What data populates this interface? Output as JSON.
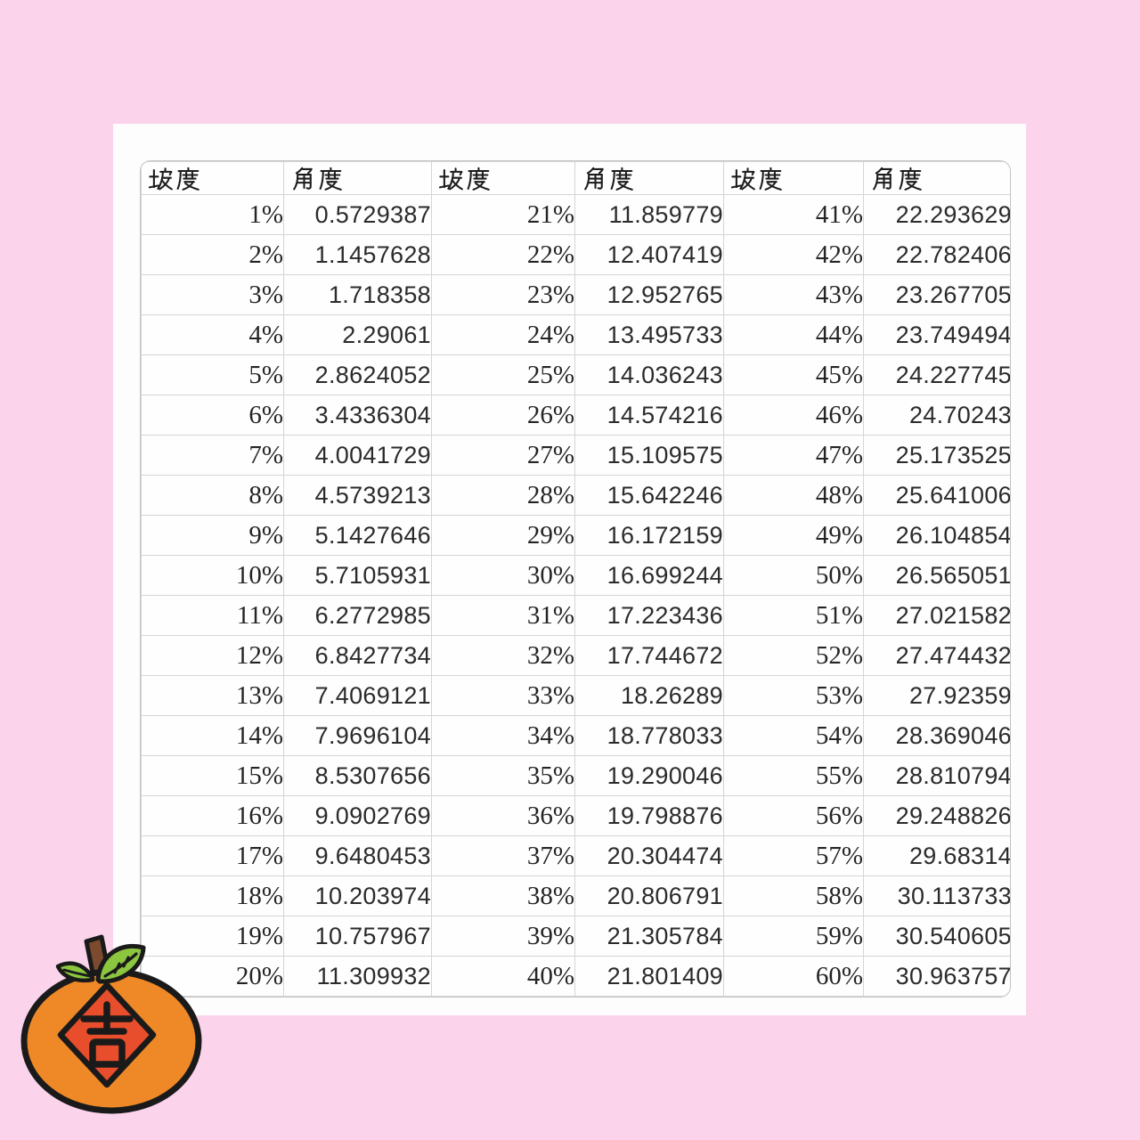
{
  "page": {
    "background_color": "#FBD4EC",
    "card_color": "#FDFDFD"
  },
  "table": {
    "headers": [
      "坡度",
      "角度",
      "坡度",
      "角度",
      "坡度",
      "角度"
    ],
    "rows": [
      [
        "1%",
        "0.5729387",
        "21%",
        "11.859779",
        "41%",
        "22.293629"
      ],
      [
        "2%",
        "1.1457628",
        "22%",
        "12.407419",
        "42%",
        "22.782406"
      ],
      [
        "3%",
        "1.718358",
        "23%",
        "12.952765",
        "43%",
        "23.267705"
      ],
      [
        "4%",
        "2.29061",
        "24%",
        "13.495733",
        "44%",
        "23.749494"
      ],
      [
        "5%",
        "2.8624052",
        "25%",
        "14.036243",
        "45%",
        "24.227745"
      ],
      [
        "6%",
        "3.4336304",
        "26%",
        "14.574216",
        "46%",
        "24.70243"
      ],
      [
        "7%",
        "4.0041729",
        "27%",
        "15.109575",
        "47%",
        "25.173525"
      ],
      [
        "8%",
        "4.5739213",
        "28%",
        "15.642246",
        "48%",
        "25.641006"
      ],
      [
        "9%",
        "5.1427646",
        "29%",
        "16.172159",
        "49%",
        "26.104854"
      ],
      [
        "10%",
        "5.7105931",
        "30%",
        "16.699244",
        "50%",
        "26.565051"
      ],
      [
        "11%",
        "6.2772985",
        "31%",
        "17.223436",
        "51%",
        "27.021582"
      ],
      [
        "12%",
        "6.8427734",
        "32%",
        "17.744672",
        "52%",
        "27.474432"
      ],
      [
        "13%",
        "7.4069121",
        "33%",
        "18.26289",
        "53%",
        "27.92359"
      ],
      [
        "14%",
        "7.9696104",
        "34%",
        "18.778033",
        "54%",
        "28.369046"
      ],
      [
        "15%",
        "8.5307656",
        "35%",
        "19.290046",
        "55%",
        "28.810794"
      ],
      [
        "16%",
        "9.0902769",
        "36%",
        "19.798876",
        "56%",
        "29.248826"
      ],
      [
        "17%",
        "9.6480453",
        "37%",
        "20.304474",
        "57%",
        "29.68314"
      ],
      [
        "18%",
        "10.203974",
        "38%",
        "20.806791",
        "58%",
        "30.113733"
      ],
      [
        "19%",
        "10.757967",
        "39%",
        "21.305784",
        "59%",
        "30.540605"
      ],
      [
        "20%",
        "11.309932",
        "40%",
        "21.801409",
        "60%",
        "30.963757"
      ]
    ]
  },
  "mascot": {
    "character": "吉",
    "body_color": "#EF8928",
    "diamond_color": "#E84E2B",
    "leaf_color": "#8CC63F",
    "stem_color": "#7C4A2E",
    "outline_color": "#1A1A1A"
  }
}
